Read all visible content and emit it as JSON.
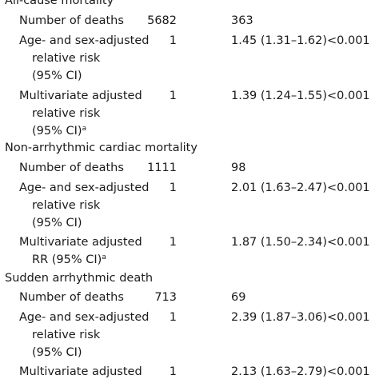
{
  "sections": [
    {
      "heading": "All-cause mortality",
      "rows": [
        {
          "label_lines": [
            "Number of deaths"
          ],
          "ref": "5682",
          "value": "363",
          "p": ""
        },
        {
          "label_lines": [
            "Age- and sex-adjusted",
            "relative risk",
            "(95% CI)"
          ],
          "ref": "1",
          "value": "1.45 (1.31–1.62)",
          "p": "<0.001"
        },
        {
          "label_lines": [
            "Multivariate adjusted",
            "relative risk",
            "(95% CI)"
          ],
          "label_sup": "a",
          "ref": "1",
          "value": "1.39 (1.24–1.55)",
          "p": "<0.001"
        }
      ]
    },
    {
      "heading": "Non-arrhythmic cardiac mortality",
      "rows": [
        {
          "label_lines": [
            "Number of deaths"
          ],
          "ref": "1111",
          "value": "98",
          "p": ""
        },
        {
          "label_lines": [
            "Age- and sex-adjusted",
            "relative risk",
            "(95% CI)"
          ],
          "ref": "1",
          "value": "2.01 (1.63–2.47)",
          "p": "<0.001"
        },
        {
          "label_lines": [
            "Multivariate adjusted",
            "RR (95% CI)"
          ],
          "label_sup": "a",
          "ref": "1",
          "value": "1.87 (1.50–2.34)",
          "p": "<0.001"
        }
      ]
    },
    {
      "heading": "Sudden arrhythmic death",
      "rows": [
        {
          "label_lines": [
            "Number of deaths"
          ],
          "ref": "713",
          "value": "69",
          "p": ""
        },
        {
          "label_lines": [
            "Age- and sex-adjusted",
            "relative risk",
            "(95% CI)"
          ],
          "ref": "1",
          "value": "2.39 (1.87–3.06)",
          "p": "<0.001"
        },
        {
          "label_lines": [
            "Multivariate adjusted"
          ],
          "ref": "1",
          "value": "2.13 (1.63–2.79)",
          "p": "<0.001"
        }
      ]
    }
  ]
}
